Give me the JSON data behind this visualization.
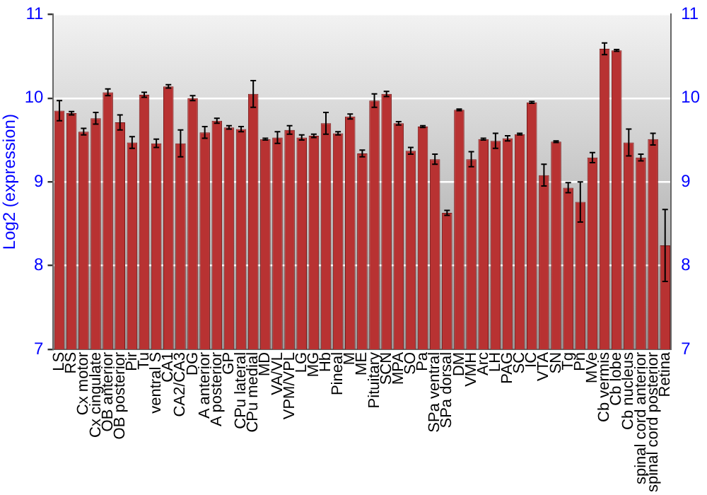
{
  "chart_data": {
    "type": "bar",
    "ylabel": "Log2 (expression)",
    "categories": [
      "LS",
      "RS",
      "Cx motor",
      "Cx cingulate",
      "OB anterior",
      "OB posterior",
      "Pir",
      "Tu",
      "ventral S",
      "CA1",
      "CA2/CA3",
      "DG",
      "A anterior",
      "A posterior",
      "GP",
      "CPu lateral",
      "CPu medial",
      "MD",
      "VA/VL",
      "VPM/VPL",
      "LG",
      "MG",
      "Hb",
      "Pineal",
      "M",
      "ME",
      "Pituitary",
      "SCN",
      "MPA",
      "SO",
      "Pa",
      "SPa ventral",
      "SPa dorsal",
      "DM",
      "VMH",
      "Arc",
      "LH",
      "PAG",
      "SC",
      "IC",
      "VTA",
      "SN",
      "Tg",
      "Pn",
      "MVe",
      "Cb vermis",
      "Cb lobe",
      "Cb nucleus",
      "spinal cord anterior",
      "spinal cord posterior",
      "Retina"
    ],
    "values": [
      9.85,
      9.82,
      9.6,
      9.76,
      10.07,
      9.71,
      9.47,
      10.04,
      9.46,
      10.14,
      9.46,
      10.0,
      9.59,
      9.73,
      9.65,
      9.63,
      10.05,
      9.51,
      9.53,
      9.62,
      9.53,
      9.55,
      9.7,
      9.58,
      9.78,
      9.34,
      9.97,
      10.05,
      9.7,
      9.37,
      9.66,
      9.27,
      8.63,
      9.86,
      9.27,
      9.51,
      9.49,
      9.52,
      9.57,
      9.95,
      9.08,
      9.48,
      8.93,
      8.76,
      9.29,
      10.59,
      10.57,
      9.47,
      9.29,
      9.51,
      8.24
    ],
    "errors": [
      0.12,
      0.02,
      0.04,
      0.07,
      0.04,
      0.09,
      0.07,
      0.03,
      0.05,
      0.02,
      0.16,
      0.03,
      0.07,
      0.03,
      0.02,
      0.03,
      0.16,
      0.01,
      0.07,
      0.05,
      0.03,
      0.02,
      0.13,
      0.02,
      0.03,
      0.04,
      0.08,
      0.03,
      0.02,
      0.04,
      0.01,
      0.06,
      0.03,
      0.01,
      0.09,
      0.01,
      0.09,
      0.03,
      0.01,
      0.01,
      0.13,
      0.01,
      0.06,
      0.24,
      0.06,
      0.07,
      0.01,
      0.16,
      0.04,
      0.07,
      0.43
    ],
    "color": "#b83232",
    "ylim": [
      7,
      11
    ],
    "yticks": [
      7,
      8,
      9,
      10,
      11
    ],
    "y2lim": [
      7,
      11
    ],
    "y2ticks": [
      7,
      8,
      9,
      10,
      11
    ],
    "grid": "y",
    "legend": false
  }
}
